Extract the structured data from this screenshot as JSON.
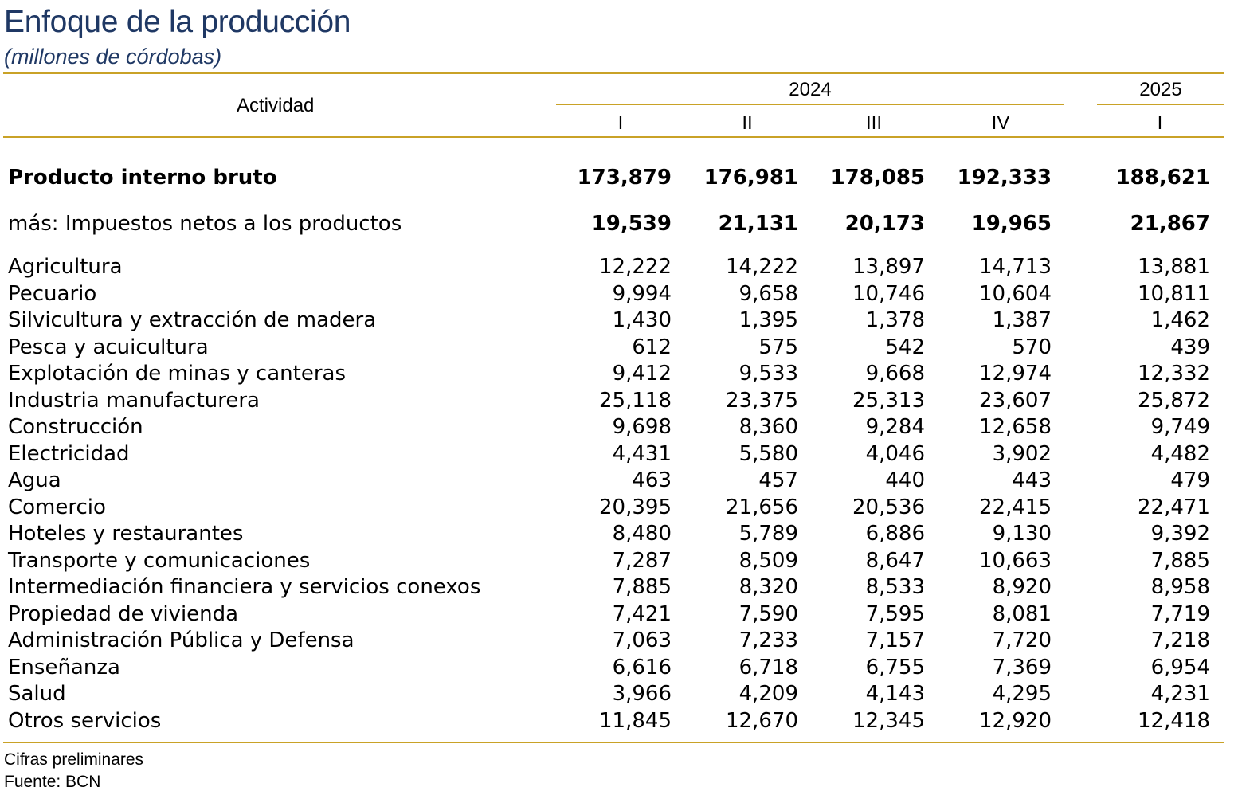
{
  "title": "Enfoque de la producción",
  "subtitle": "(millones de córdobas)",
  "header": {
    "activity_label": "Actividad",
    "year_2024": "2024",
    "year_2025": "2025",
    "quarters": [
      "I",
      "II",
      "III",
      "IV",
      "I"
    ]
  },
  "summary_rows": [
    {
      "label": "Producto interno bruto",
      "values": [
        "173,879",
        "176,981",
        "178,085",
        "192,333",
        "188,621"
      ]
    },
    {
      "label": "más: Impuestos netos a los productos",
      "values": [
        "19,539",
        "21,131",
        "20,173",
        "19,965",
        "21,867"
      ]
    }
  ],
  "rows": [
    {
      "label": "Agricultura",
      "values": [
        "12,222",
        "14,222",
        "13,897",
        "14,713",
        "13,881"
      ]
    },
    {
      "label": "Pecuario",
      "values": [
        "9,994",
        "9,658",
        "10,746",
        "10,604",
        "10,811"
      ]
    },
    {
      "label": "Silvicultura y extracción de madera",
      "values": [
        "1,430",
        "1,395",
        "1,378",
        "1,387",
        "1,462"
      ]
    },
    {
      "label": "Pesca y acuicultura",
      "values": [
        "612",
        "575",
        "542",
        "570",
        "439"
      ]
    },
    {
      "label": "Explotación de minas y canteras",
      "values": [
        "9,412",
        "9,533",
        "9,668",
        "12,974",
        "12,332"
      ]
    },
    {
      "label": "Industria manufacturera",
      "values": [
        "25,118",
        "23,375",
        "25,313",
        "23,607",
        "25,872"
      ]
    },
    {
      "label": "Construcción",
      "values": [
        "9,698",
        "8,360",
        "9,284",
        "12,658",
        "9,749"
      ]
    },
    {
      "label": "Electricidad",
      "values": [
        "4,431",
        "5,580",
        "4,046",
        "3,902",
        "4,482"
      ]
    },
    {
      "label": "Agua",
      "values": [
        "463",
        "457",
        "440",
        "443",
        "479"
      ]
    },
    {
      "label": "Comercio",
      "values": [
        "20,395",
        "21,656",
        "20,536",
        "22,415",
        "22,471"
      ]
    },
    {
      "label": "Hoteles y restaurantes",
      "values": [
        "8,480",
        "5,789",
        "6,886",
        "9,130",
        "9,392"
      ]
    },
    {
      "label": "Transporte y comunicaciones",
      "values": [
        "7,287",
        "8,509",
        "8,647",
        "10,663",
        "7,885"
      ]
    },
    {
      "label": "Intermediación financiera y servicios conexos",
      "values": [
        "7,885",
        "8,320",
        "8,533",
        "8,920",
        "8,958"
      ]
    },
    {
      "label": "Propiedad de vivienda",
      "values": [
        "7,421",
        "7,590",
        "7,595",
        "8,081",
        "7,719"
      ]
    },
    {
      "label": "Administración Pública y Defensa",
      "values": [
        "7,063",
        "7,233",
        "7,157",
        "7,720",
        "7,218"
      ]
    },
    {
      "label": "Enseñanza",
      "values": [
        "6,616",
        "6,718",
        "6,755",
        "7,369",
        "6,954"
      ]
    },
    {
      "label": "Salud",
      "values": [
        "3,966",
        "4,209",
        "4,143",
        "4,295",
        "4,231"
      ]
    },
    {
      "label": "Otros servicios",
      "values": [
        "11,845",
        "12,670",
        "12,345",
        "12,920",
        "12,418"
      ]
    }
  ],
  "footnotes": {
    "note": "Cifras preliminares",
    "source": "Fuente: BCN"
  },
  "colors": {
    "title": "#1f3864",
    "rule": "#c9a227"
  }
}
